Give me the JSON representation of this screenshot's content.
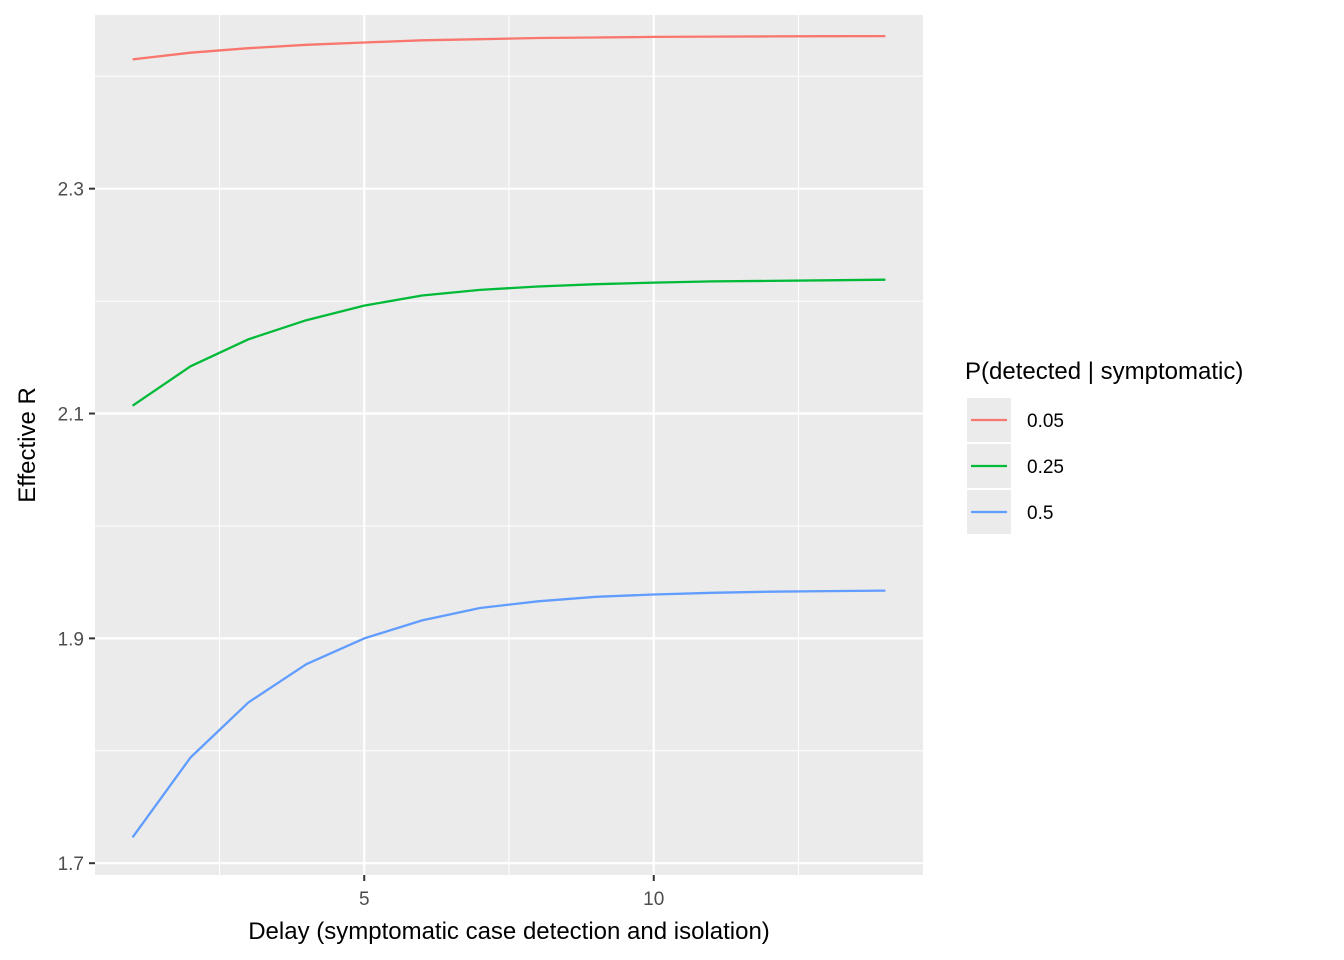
{
  "chart_data": {
    "type": "line",
    "title": "",
    "xlabel": "Delay (symptomatic case detection and isolation)",
    "ylabel": "Effective R",
    "xlim": [
      0.35,
      14.65
    ],
    "ylim": [
      1.6895,
      2.4545
    ],
    "x_ticks": [
      5,
      10
    ],
    "x_tick_labels": [
      "5",
      "10"
    ],
    "y_ticks": [
      1.7,
      1.9,
      2.1,
      2.3
    ],
    "y_tick_labels": [
      "1.7",
      "1.9",
      "2.1",
      "2.3"
    ],
    "grid": true,
    "legend": {
      "title": "P(detected |  symptomatic)",
      "position": "right"
    },
    "x": [
      1,
      2,
      3,
      4,
      5,
      6,
      7,
      8,
      9,
      10,
      11,
      12,
      13,
      14
    ],
    "series": [
      {
        "name": "0.05",
        "color": "#F8766D",
        "values": [
          2.415,
          2.421,
          2.425,
          2.428,
          2.43,
          2.432,
          2.433,
          2.434,
          2.4345,
          2.435,
          2.4353,
          2.4355,
          2.4356,
          2.4357
        ]
      },
      {
        "name": "0.25",
        "color": "#00BA38",
        "values": [
          2.107,
          2.142,
          2.166,
          2.183,
          2.196,
          2.205,
          2.21,
          2.213,
          2.215,
          2.2165,
          2.2175,
          2.218,
          2.2185,
          2.219
        ]
      },
      {
        "name": "0.5",
        "color": "#619CFF",
        "values": [
          1.723,
          1.794,
          1.843,
          1.877,
          1.9,
          1.916,
          1.927,
          1.933,
          1.937,
          1.939,
          1.9405,
          1.9415,
          1.942,
          1.9425
        ]
      }
    ]
  }
}
